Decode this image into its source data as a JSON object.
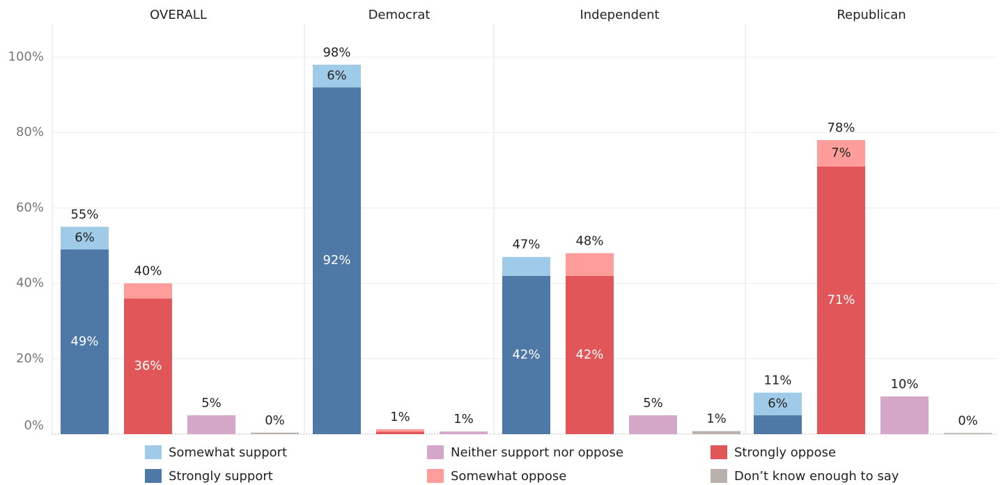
{
  "chart_data": {
    "type": "bar",
    "stacked": true,
    "panels": [
      "OVERALL",
      "Democrat",
      "Independent",
      "Republican"
    ],
    "y_ticks": [
      "0%",
      "20%",
      "40%",
      "60%",
      "80%",
      "100%"
    ],
    "ylim": [
      0,
      100
    ],
    "grid": true,
    "series": [
      {
        "name": "Strongly support",
        "color": "#4e79a7",
        "bar": 0
      },
      {
        "name": "Somewhat support",
        "color": "#a0cbe8",
        "bar": 0
      },
      {
        "name": "Strongly oppose",
        "color": "#e15759",
        "bar": 1
      },
      {
        "name": "Somewhat oppose",
        "color": "#ff9d9a",
        "bar": 1
      },
      {
        "name": "Neither support nor oppose",
        "color": "#d4a6c8",
        "bar": 2
      },
      {
        "name": "Don’t know enough to say",
        "color": "#bab0ac",
        "bar": 3
      }
    ],
    "panel_data": [
      {
        "bars": [
          {
            "segments": [
              {
                "series": 0,
                "value": 49,
                "label": "49%"
              },
              {
                "series": 1,
                "value": 6,
                "label": "6%"
              }
            ],
            "total": 55,
            "total_label": "55%"
          },
          {
            "segments": [
              {
                "series": 2,
                "value": 36,
                "label": "36%"
              },
              {
                "series": 3,
                "value": 4
              }
            ],
            "total": 40,
            "total_label": "40%"
          },
          {
            "segments": [
              {
                "series": 4,
                "value": 5
              }
            ],
            "total": 5,
            "total_label": "5%"
          },
          {
            "segments": [
              {
                "series": 5,
                "value": 0.4
              }
            ],
            "total": 0,
            "total_label": "0%"
          }
        ]
      },
      {
        "bars": [
          {
            "segments": [
              {
                "series": 0,
                "value": 92,
                "label": "92%"
              },
              {
                "series": 1,
                "value": 6,
                "label": "6%"
              }
            ],
            "total": 98,
            "total_label": "98%"
          },
          {
            "segments": [
              {
                "series": 2,
                "value": 0.7
              },
              {
                "series": 3,
                "value": 0.6
              }
            ],
            "total": 1,
            "total_label": "1%"
          },
          {
            "segments": [
              {
                "series": 4,
                "value": 0.7
              }
            ],
            "total": 1,
            "total_label": "1%"
          }
        ]
      },
      {
        "bars": [
          {
            "segments": [
              {
                "series": 0,
                "value": 42,
                "label": "42%"
              },
              {
                "series": 1,
                "value": 5
              }
            ],
            "total": 47,
            "total_label": "47%"
          },
          {
            "segments": [
              {
                "series": 2,
                "value": 42,
                "label": "42%"
              },
              {
                "series": 3,
                "value": 6
              }
            ],
            "total": 48,
            "total_label": "48%"
          },
          {
            "segments": [
              {
                "series": 4,
                "value": 5
              }
            ],
            "total": 5,
            "total_label": "5%"
          },
          {
            "segments": [
              {
                "series": 5,
                "value": 0.8
              }
            ],
            "total": 1,
            "total_label": "1%"
          }
        ]
      },
      {
        "bars": [
          {
            "segments": [
              {
                "series": 0,
                "value": 5
              },
              {
                "series": 1,
                "value": 6,
                "label": "6%"
              }
            ],
            "total": 11,
            "total_label": "11%"
          },
          {
            "segments": [
              {
                "series": 2,
                "value": 71,
                "label": "71%"
              },
              {
                "series": 3,
                "value": 7,
                "label": "7%"
              }
            ],
            "total": 78,
            "total_label": "78%"
          },
          {
            "segments": [
              {
                "series": 4,
                "value": 10
              }
            ],
            "total": 10,
            "total_label": "10%"
          },
          {
            "segments": [
              {
                "series": 5,
                "value": 0.3
              }
            ],
            "total": 0,
            "total_label": "0%"
          }
        ]
      }
    ],
    "legend": {
      "placement": "bottom",
      "rows": [
        [
          {
            "label": "Somewhat support",
            "color": "#a0cbe8"
          },
          {
            "label": "Neither support nor oppose",
            "color": "#d4a6c8"
          },
          {
            "label": "Strongly oppose",
            "color": "#e15759"
          }
        ],
        [
          {
            "label": "Strongly support",
            "color": "#4e79a7"
          },
          {
            "label": "Somewhat oppose",
            "color": "#ff9d9a"
          },
          {
            "label": "Don’t know enough to say",
            "color": "#bab0ac"
          }
        ]
      ]
    }
  }
}
